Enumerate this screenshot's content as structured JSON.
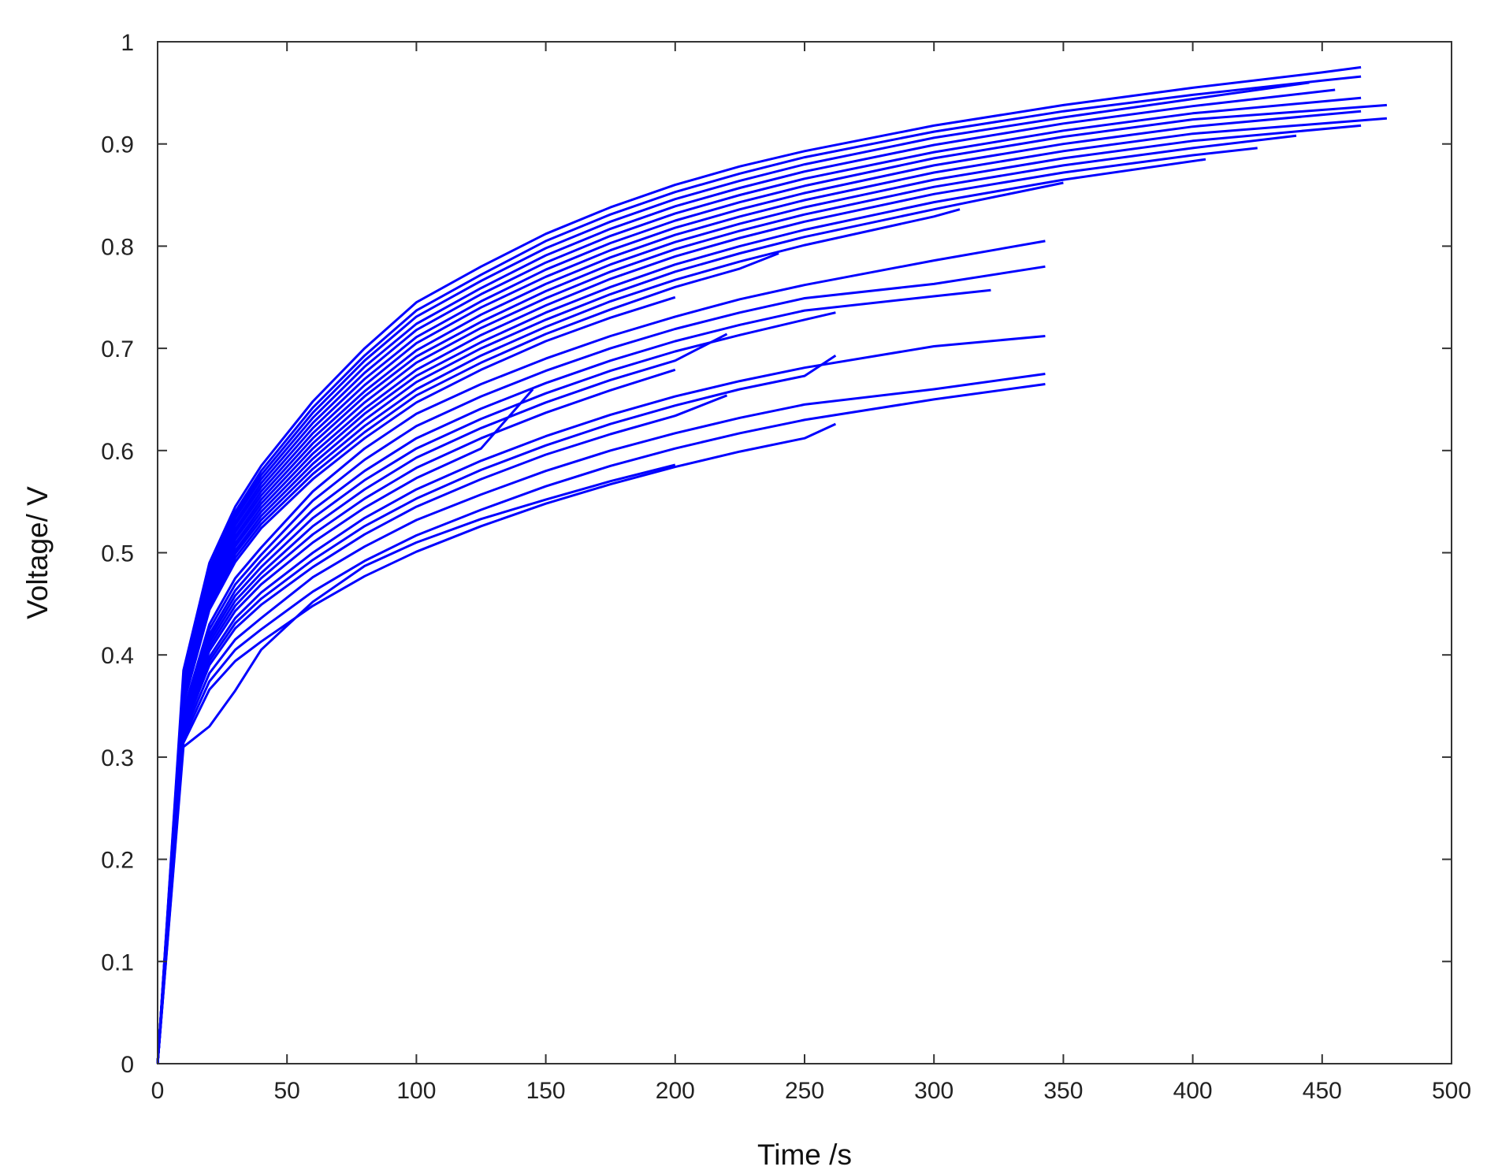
{
  "chart_data": {
    "type": "line",
    "title": "",
    "xlabel": "Time /s",
    "ylabel": "Voltage/ V",
    "xlim": [
      0,
      500
    ],
    "ylim": [
      0,
      1
    ],
    "xticks": [
      "0",
      "50",
      "100",
      "150",
      "200",
      "250",
      "300",
      "350",
      "400",
      "450",
      "500"
    ],
    "yticks": [
      "0",
      "0.1",
      "0.2",
      "0.3",
      "0.4",
      "0.5",
      "0.6",
      "0.7",
      "0.8",
      "0.9",
      "1"
    ],
    "grid": false,
    "legend": "none",
    "line_color": "#0000ff",
    "series": [
      {
        "x": [
          0,
          10,
          20,
          30,
          40,
          60,
          80,
          100,
          125,
          150,
          175,
          200,
          225,
          250,
          300,
          350,
          400,
          450,
          465
        ],
        "y": [
          0,
          0.385,
          0.49,
          0.545,
          0.585,
          0.648,
          0.7,
          0.745,
          0.78,
          0.812,
          0.838,
          0.86,
          0.878,
          0.893,
          0.918,
          0.938,
          0.955,
          0.97,
          0.975
        ]
      },
      {
        "x": [
          0,
          10,
          20,
          30,
          40,
          60,
          80,
          100,
          125,
          150,
          175,
          200,
          225,
          250,
          300,
          350,
          400,
          450,
          465
        ],
        "y": [
          0,
          0.38,
          0.485,
          0.54,
          0.58,
          0.642,
          0.693,
          0.737,
          0.772,
          0.805,
          0.831,
          0.853,
          0.871,
          0.887,
          0.912,
          0.932,
          0.948,
          0.962,
          0.966
        ]
      },
      {
        "x": [
          0,
          10,
          20,
          30,
          40,
          60,
          80,
          100,
          125,
          150,
          175,
          200,
          225,
          250,
          300,
          350,
          400,
          445
        ],
        "y": [
          0,
          0.378,
          0.482,
          0.537,
          0.576,
          0.637,
          0.688,
          0.731,
          0.766,
          0.798,
          0.824,
          0.846,
          0.864,
          0.88,
          0.906,
          0.926,
          0.944,
          0.96
        ]
      },
      {
        "x": [
          0,
          10,
          20,
          30,
          40,
          60,
          80,
          100,
          125,
          150,
          175,
          200,
          225,
          250,
          300,
          350,
          400,
          455
        ],
        "y": [
          0,
          0.376,
          0.48,
          0.534,
          0.572,
          0.632,
          0.682,
          0.724,
          0.759,
          0.791,
          0.817,
          0.839,
          0.857,
          0.873,
          0.899,
          0.92,
          0.937,
          0.953
        ]
      },
      {
        "x": [
          0,
          10,
          20,
          30,
          40,
          60,
          80,
          100,
          125,
          150,
          175,
          200,
          225,
          250,
          300,
          350,
          400,
          465
        ],
        "y": [
          0,
          0.374,
          0.477,
          0.53,
          0.568,
          0.627,
          0.676,
          0.718,
          0.753,
          0.784,
          0.81,
          0.832,
          0.85,
          0.866,
          0.892,
          0.913,
          0.93,
          0.945
        ]
      },
      {
        "x": [
          0,
          10,
          20,
          30,
          40,
          60,
          80,
          100,
          125,
          150,
          175,
          200,
          225,
          250,
          300,
          350,
          400,
          475
        ],
        "y": [
          0,
          0.372,
          0.474,
          0.527,
          0.564,
          0.622,
          0.67,
          0.711,
          0.746,
          0.777,
          0.803,
          0.825,
          0.843,
          0.859,
          0.886,
          0.907,
          0.924,
          0.938
        ]
      },
      {
        "x": [
          0,
          10,
          20,
          30,
          40,
          60,
          80,
          100,
          125,
          150,
          175,
          200,
          225,
          250,
          300,
          350,
          400,
          465
        ],
        "y": [
          0,
          0.37,
          0.471,
          0.523,
          0.56,
          0.617,
          0.664,
          0.705,
          0.74,
          0.77,
          0.796,
          0.818,
          0.836,
          0.852,
          0.879,
          0.9,
          0.917,
          0.932
        ]
      },
      {
        "x": [
          0,
          10,
          20,
          30,
          40,
          60,
          80,
          100,
          125,
          150,
          175,
          200,
          225,
          250,
          300,
          350,
          400,
          475
        ],
        "y": [
          0,
          0.368,
          0.468,
          0.52,
          0.556,
          0.612,
          0.658,
          0.698,
          0.733,
          0.763,
          0.789,
          0.811,
          0.829,
          0.845,
          0.872,
          0.893,
          0.91,
          0.925
        ]
      },
      {
        "x": [
          0,
          10,
          20,
          30,
          40,
          60,
          80,
          100,
          125,
          150,
          175,
          200,
          225,
          250,
          300,
          350,
          400,
          465
        ],
        "y": [
          0,
          0.366,
          0.465,
          0.516,
          0.552,
          0.607,
          0.653,
          0.692,
          0.726,
          0.756,
          0.782,
          0.804,
          0.822,
          0.838,
          0.865,
          0.886,
          0.903,
          0.918
        ]
      },
      {
        "x": [
          0,
          10,
          20,
          30,
          40,
          60,
          80,
          100,
          125,
          150,
          175,
          200,
          225,
          250,
          300,
          350,
          400,
          440
        ],
        "y": [
          0,
          0.364,
          0.462,
          0.513,
          0.548,
          0.602,
          0.647,
          0.686,
          0.72,
          0.749,
          0.775,
          0.797,
          0.815,
          0.831,
          0.858,
          0.879,
          0.896,
          0.908
        ]
      },
      {
        "x": [
          0,
          10,
          20,
          30,
          40,
          60,
          80,
          100,
          125,
          150,
          175,
          200,
          225,
          250,
          300,
          350,
          400,
          425
        ],
        "y": [
          0,
          0.362,
          0.459,
          0.509,
          0.544,
          0.597,
          0.641,
          0.679,
          0.713,
          0.742,
          0.768,
          0.79,
          0.808,
          0.824,
          0.851,
          0.872,
          0.889,
          0.896
        ]
      },
      {
        "x": [
          0,
          10,
          20,
          30,
          40,
          60,
          80,
          100,
          125,
          150,
          175,
          200,
          225,
          250,
          300,
          350,
          405
        ],
        "y": [
          0,
          0.36,
          0.456,
          0.506,
          0.54,
          0.592,
          0.636,
          0.673,
          0.706,
          0.735,
          0.76,
          0.782,
          0.8,
          0.816,
          0.843,
          0.865,
          0.885
        ]
      },
      {
        "x": [
          0,
          10,
          20,
          30,
          40,
          60,
          80,
          100,
          125,
          150,
          175,
          200,
          225,
          250,
          300,
          350
        ],
        "y": [
          0,
          0.358,
          0.453,
          0.502,
          0.536,
          0.587,
          0.63,
          0.667,
          0.7,
          0.728,
          0.753,
          0.775,
          0.793,
          0.809,
          0.836,
          0.862
        ]
      },
      {
        "x": [
          0,
          10,
          20,
          30,
          40,
          60,
          80,
          100,
          125,
          150,
          175,
          200,
          225,
          250,
          300,
          310
        ],
        "y": [
          0,
          0.356,
          0.45,
          0.499,
          0.532,
          0.582,
          0.624,
          0.66,
          0.693,
          0.721,
          0.746,
          0.767,
          0.785,
          0.801,
          0.829,
          0.836
        ]
      },
      {
        "x": [
          0,
          10,
          20,
          30,
          40,
          60,
          80,
          100,
          125,
          150,
          175,
          200,
          225,
          240
        ],
        "y": [
          0,
          0.354,
          0.447,
          0.495,
          0.528,
          0.577,
          0.618,
          0.654,
          0.686,
          0.714,
          0.738,
          0.76,
          0.778,
          0.793
        ]
      },
      {
        "x": [
          0,
          10,
          20,
          30,
          40,
          60,
          80,
          100,
          125,
          150,
          175,
          200
        ],
        "y": [
          0,
          0.352,
          0.444,
          0.491,
          0.524,
          0.572,
          0.612,
          0.647,
          0.679,
          0.707,
          0.73,
          0.75
        ]
      },
      {
        "x": [
          0,
          10,
          20,
          30,
          40,
          60,
          80,
          100,
          125,
          150,
          175,
          200,
          225,
          250,
          300,
          343
        ],
        "y": [
          0,
          0.345,
          0.43,
          0.475,
          0.505,
          0.56,
          0.602,
          0.636,
          0.665,
          0.69,
          0.712,
          0.731,
          0.748,
          0.762,
          0.786,
          0.805
        ]
      },
      {
        "x": [
          0,
          10,
          20,
          30,
          40,
          60,
          80,
          100,
          125,
          150,
          175,
          200,
          225,
          250,
          300,
          343
        ],
        "y": [
          0,
          0.342,
          0.425,
          0.469,
          0.498,
          0.551,
          0.591,
          0.624,
          0.653,
          0.678,
          0.7,
          0.719,
          0.735,
          0.749,
          0.763,
          0.78
        ]
      },
      {
        "x": [
          0,
          10,
          20,
          30,
          40,
          60,
          80,
          100,
          125,
          150,
          175,
          200,
          225,
          250,
          300,
          322
        ],
        "y": [
          0,
          0.34,
          0.42,
          0.463,
          0.492,
          0.542,
          0.58,
          0.612,
          0.641,
          0.666,
          0.688,
          0.707,
          0.723,
          0.737,
          0.751,
          0.757
        ]
      },
      {
        "x": [
          0,
          10,
          20,
          30,
          40,
          60,
          80,
          100,
          125,
          150,
          175,
          200,
          225,
          250,
          262
        ],
        "y": [
          0,
          0.338,
          0.416,
          0.458,
          0.486,
          0.534,
          0.571,
          0.602,
          0.631,
          0.656,
          0.678,
          0.697,
          0.713,
          0.728,
          0.735
        ]
      },
      {
        "x": [
          0,
          10,
          20,
          30,
          40,
          60,
          80,
          100,
          125,
          150,
          175,
          200,
          220
        ],
        "y": [
          0,
          0.336,
          0.412,
          0.453,
          0.48,
          0.526,
          0.562,
          0.593,
          0.622,
          0.647,
          0.669,
          0.688,
          0.714
        ]
      },
      {
        "x": [
          0,
          10,
          20,
          30,
          40,
          60,
          80,
          100,
          125,
          150,
          175,
          200
        ],
        "y": [
          0,
          0.334,
          0.408,
          0.448,
          0.475,
          0.518,
          0.553,
          0.583,
          0.612,
          0.637,
          0.659,
          0.679
        ]
      },
      {
        "x": [
          0,
          10,
          20,
          30,
          40,
          60,
          80,
          100,
          125,
          145
        ],
        "y": [
          0,
          0.332,
          0.404,
          0.443,
          0.469,
          0.51,
          0.544,
          0.573,
          0.602,
          0.66
        ]
      },
      {
        "x": [
          0,
          10,
          20,
          30,
          40,
          60,
          80,
          100,
          125,
          150,
          175,
          200,
          225,
          250,
          300,
          343
        ],
        "y": [
          0,
          0.33,
          0.398,
          0.436,
          0.461,
          0.5,
          0.534,
          0.562,
          0.59,
          0.614,
          0.635,
          0.653,
          0.668,
          0.681,
          0.702,
          0.712
        ]
      },
      {
        "x": [
          0,
          10,
          20,
          30,
          40,
          60,
          80,
          100,
          125,
          150,
          175,
          200,
          225,
          250,
          262
        ],
        "y": [
          0,
          0.328,
          0.394,
          0.431,
          0.455,
          0.493,
          0.526,
          0.553,
          0.581,
          0.605,
          0.626,
          0.644,
          0.66,
          0.673,
          0.693
        ]
      },
      {
        "x": [
          0,
          10,
          20,
          30,
          40,
          60,
          80,
          100,
          125,
          150,
          175,
          200,
          220
        ],
        "y": [
          0,
          0.326,
          0.39,
          0.426,
          0.449,
          0.486,
          0.518,
          0.545,
          0.572,
          0.596,
          0.616,
          0.634,
          0.654
        ]
      },
      {
        "x": [
          0,
          10,
          20,
          30,
          40,
          60,
          80,
          100,
          125,
          150,
          175,
          200,
          225,
          250,
          300,
          343
        ],
        "y": [
          0,
          0.322,
          0.382,
          0.415,
          0.436,
          0.476,
          0.506,
          0.532,
          0.557,
          0.58,
          0.6,
          0.617,
          0.632,
          0.645,
          0.66,
          0.675
        ]
      },
      {
        "x": [
          0,
          10,
          20,
          30,
          40,
          60,
          80,
          100,
          125,
          150,
          175,
          200,
          225,
          250,
          300,
          343
        ],
        "y": [
          0,
          0.318,
          0.374,
          0.405,
          0.425,
          0.462,
          0.492,
          0.517,
          0.542,
          0.565,
          0.585,
          0.602,
          0.617,
          0.63,
          0.65,
          0.665
        ]
      },
      {
        "x": [
          0,
          10,
          20,
          30,
          40,
          60,
          80,
          100,
          125,
          150,
          175,
          200,
          225,
          250,
          262
        ],
        "y": [
          0,
          0.314,
          0.366,
          0.394,
          0.413,
          0.448,
          0.477,
          0.501,
          0.526,
          0.548,
          0.567,
          0.584,
          0.599,
          0.612,
          0.626
        ]
      },
      {
        "x": [
          0,
          10,
          20,
          30,
          40,
          60,
          80,
          100,
          125,
          150,
          175,
          200
        ],
        "y": [
          0,
          0.31,
          0.33,
          0.365,
          0.405,
          0.452,
          0.487,
          0.51,
          0.533,
          0.552,
          0.57,
          0.586
        ]
      }
    ]
  }
}
